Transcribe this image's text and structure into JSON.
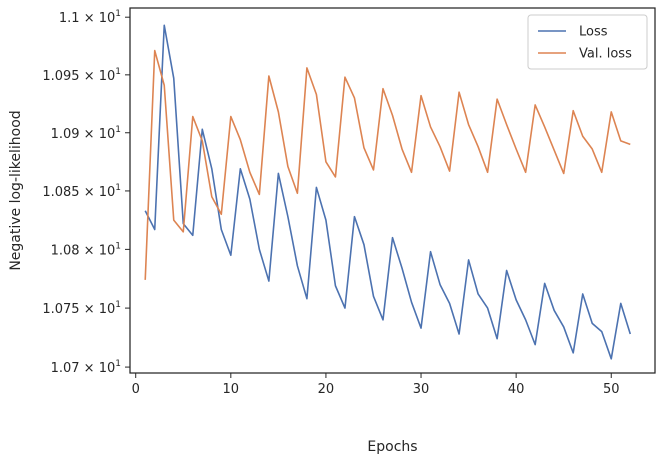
{
  "chart_data": {
    "type": "line",
    "title": "",
    "xlabel": "Epochs",
    "ylabel": "Negative log-likelihood",
    "yscale": "log",
    "xlim": [
      -0.6,
      54.6
    ],
    "ylim": [
      10.695,
      11.008
    ],
    "grid": false,
    "legend_position": "top-right",
    "x_ticks": [
      0,
      10,
      20,
      30,
      40,
      50
    ],
    "y_ticks": [
      {
        "value": 10.7,
        "mantissa": "1.07",
        "base": "10",
        "exp": "1"
      },
      {
        "value": 10.75,
        "mantissa": "1.075",
        "base": "10",
        "exp": "1"
      },
      {
        "value": 10.8,
        "mantissa": "1.08",
        "base": "10",
        "exp": "1"
      },
      {
        "value": 10.85,
        "mantissa": "1.085",
        "base": "10",
        "exp": "1"
      },
      {
        "value": 10.9,
        "mantissa": "1.09",
        "base": "10",
        "exp": "1"
      },
      {
        "value": 10.95,
        "mantissa": "1.095",
        "base": "10",
        "exp": "1"
      },
      {
        "value": 11.0,
        "mantissa": "1.1",
        "base": "10",
        "exp": "1"
      }
    ],
    "x": [
      1,
      2,
      3,
      4,
      5,
      6,
      7,
      8,
      9,
      10,
      11,
      12,
      13,
      14,
      15,
      16,
      17,
      18,
      19,
      20,
      21,
      22,
      23,
      24,
      25,
      26,
      27,
      28,
      29,
      30,
      31,
      32,
      33,
      34,
      35,
      36,
      37,
      38,
      39,
      40,
      41,
      42,
      43,
      44,
      45,
      46,
      47,
      48,
      49,
      50,
      51,
      52
    ],
    "series": [
      {
        "name": "Loss",
        "color": "#4c72b0",
        "values": [
          10.833,
          10.817,
          10.993,
          10.947,
          10.822,
          10.812,
          10.903,
          10.869,
          10.817,
          10.795,
          10.869,
          10.843,
          10.8,
          10.773,
          10.865,
          10.828,
          10.786,
          10.758,
          10.853,
          10.825,
          10.769,
          10.75,
          10.828,
          10.804,
          10.76,
          10.74,
          10.81,
          10.784,
          10.755,
          10.733,
          10.798,
          10.77,
          10.754,
          10.728,
          10.791,
          10.762,
          10.75,
          10.724,
          10.782,
          10.757,
          10.74,
          10.719,
          10.771,
          10.748,
          10.734,
          10.712,
          10.762,
          10.737,
          10.73,
          10.707,
          10.754,
          10.728
        ]
      },
      {
        "name": "Val. loss",
        "color": "#dd8452",
        "values": [
          10.774,
          10.971,
          10.941,
          10.825,
          10.815,
          10.914,
          10.893,
          10.845,
          10.83,
          10.914,
          10.894,
          10.866,
          10.847,
          10.949,
          10.918,
          10.871,
          10.848,
          10.956,
          10.933,
          10.875,
          10.862,
          10.948,
          10.93,
          10.887,
          10.868,
          10.938,
          10.915,
          10.886,
          10.866,
          10.932,
          10.905,
          10.888,
          10.867,
          10.935,
          10.907,
          10.888,
          10.866,
          10.929,
          10.907,
          10.886,
          10.866,
          10.924,
          10.905,
          10.885,
          10.865,
          10.919,
          10.897,
          10.886,
          10.866,
          10.918,
          10.893,
          10.89
        ]
      }
    ]
  }
}
